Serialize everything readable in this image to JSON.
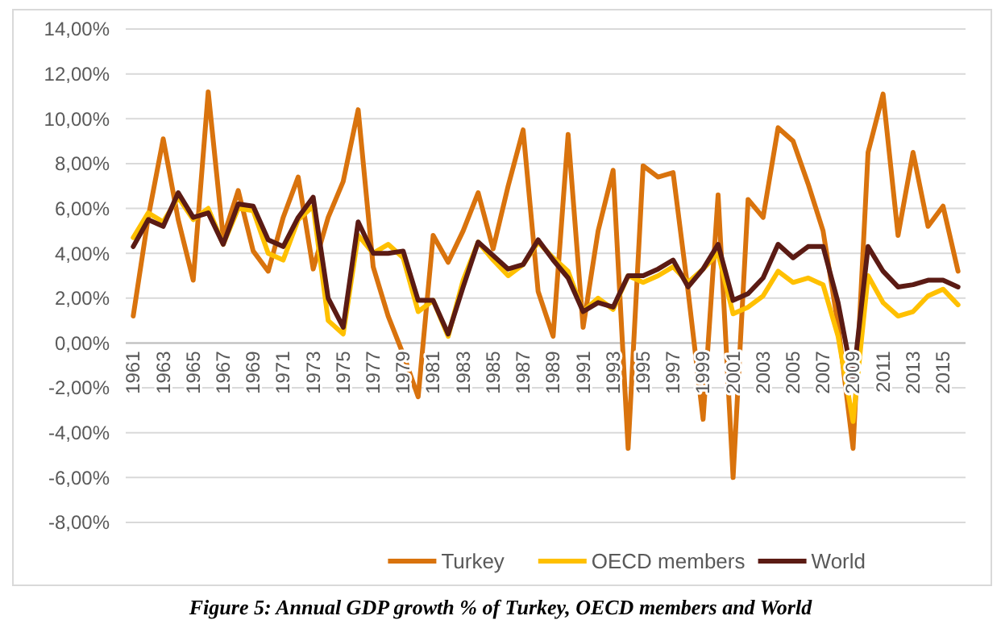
{
  "chart_data": {
    "type": "line",
    "categories": [
      "1961",
      null,
      "1963",
      null,
      "1965",
      null,
      "1967",
      null,
      "1969",
      null,
      "1971",
      null,
      "1973",
      null,
      "1975",
      null,
      "1977",
      null,
      "1979",
      null,
      "1981",
      null,
      "1983",
      null,
      "1985",
      null,
      "1987",
      null,
      "1989",
      null,
      "1991",
      null,
      "1993",
      null,
      "1995",
      null,
      "1997",
      null,
      "1999",
      null,
      "2001",
      null,
      "2003",
      null,
      "2005",
      null,
      "2007",
      null,
      "2009",
      null,
      "2011",
      null,
      "2013",
      null,
      "2015",
      null
    ],
    "series": [
      {
        "name": "Turkey",
        "color": "#d9730d",
        "values": [
          1.2,
          5.6,
          9.1,
          5.5,
          2.8,
          11.2,
          4.7,
          6.8,
          4.1,
          3.2,
          5.6,
          7.4,
          3.3,
          5.6,
          7.2,
          10.4,
          3.4,
          1.2,
          -0.5,
          -2.4,
          4.8,
          3.6,
          5.0,
          6.7,
          4.2,
          7.0,
          9.5,
          2.3,
          0.3,
          9.3,
          0.7,
          5.0,
          7.7,
          -4.7,
          7.9,
          7.4,
          7.6,
          2.3,
          -3.4,
          6.6,
          -6.0,
          6.4,
          5.6,
          9.6,
          9.0,
          7.1,
          5.0,
          0.8,
          -4.7,
          8.5,
          11.1,
          4.8,
          8.5,
          5.2,
          6.1,
          3.2
        ]
      },
      {
        "name": "OECD members",
        "color": "#ffc000",
        "values": [
          4.7,
          5.8,
          5.4,
          6.5,
          5.5,
          6.0,
          4.4,
          6.0,
          5.9,
          4.0,
          3.7,
          5.5,
          6.1,
          1.0,
          0.4,
          4.8,
          4.0,
          4.4,
          3.8,
          1.4,
          1.9,
          0.3,
          2.8,
          4.5,
          3.7,
          3.0,
          3.5,
          4.5,
          3.8,
          3.2,
          1.4,
          2.0,
          1.5,
          3.0,
          2.7,
          3.0,
          3.4,
          2.7,
          3.3,
          4.0,
          1.3,
          1.6,
          2.1,
          3.2,
          2.7,
          2.9,
          2.6,
          0.3,
          -3.5,
          3.0,
          1.8,
          1.2,
          1.4,
          2.1,
          2.4,
          1.7
        ]
      },
      {
        "name": "World",
        "color": "#5b1b14",
        "values": [
          4.3,
          5.5,
          5.2,
          6.7,
          5.6,
          5.8,
          4.4,
          6.2,
          6.1,
          4.6,
          4.3,
          5.6,
          6.5,
          2.0,
          0.7,
          5.4,
          4.0,
          4.0,
          4.1,
          1.9,
          1.9,
          0.4,
          2.5,
          4.5,
          3.9,
          3.3,
          3.5,
          4.6,
          3.7,
          2.9,
          1.4,
          1.8,
          1.6,
          3.0,
          3.0,
          3.3,
          3.7,
          2.5,
          3.3,
          4.4,
          1.9,
          2.2,
          2.9,
          4.4,
          3.8,
          4.3,
          4.3,
          1.8,
          -1.7,
          4.3,
          3.2,
          2.5,
          2.6,
          2.8,
          2.8,
          2.5
        ]
      }
    ],
    "ylim": [
      -8,
      14
    ],
    "yticks": [
      {
        "value": -8,
        "label": "-8,00%"
      },
      {
        "value": -6,
        "label": "-6,00%"
      },
      {
        "value": -4,
        "label": "-4,00%"
      },
      {
        "value": -2,
        "label": "-2,00%"
      },
      {
        "value": 0,
        "label": "0,00%"
      },
      {
        "value": 2,
        "label": "2,00%"
      },
      {
        "value": 4,
        "label": "4,00%"
      },
      {
        "value": 6,
        "label": "6,00%"
      },
      {
        "value": 8,
        "label": "8,00%"
      },
      {
        "value": 10,
        "label": "10,00%"
      },
      {
        "value": 12,
        "label": "12,00%"
      },
      {
        "value": 14,
        "label": "14,00%"
      }
    ],
    "grid": "y",
    "legend": "bottom",
    "marker": "none",
    "line_style": "solid",
    "annotations": [
      "Figure 5: Annual GDP growth % of Turkey, OECD members and World"
    ]
  }
}
